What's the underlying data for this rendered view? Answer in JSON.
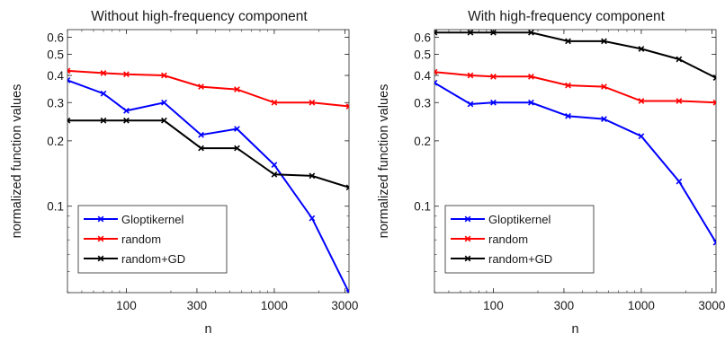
{
  "chart_data": [
    {
      "type": "line",
      "title": "Without high-frequency component",
      "xlabel": "n",
      "ylabel": "normalized function values",
      "xscale": "log",
      "yscale": "log",
      "xlim": [
        40,
        3200
      ],
      "ylim": [
        0.04,
        0.65
      ],
      "xticks": [
        100,
        300,
        1000,
        3000
      ],
      "xticklabels": [
        "100",
        "300",
        "1000",
        "3000"
      ],
      "yticks": [
        0.1,
        0.2,
        0.3,
        0.4,
        0.5,
        0.6
      ],
      "yticklabels": [
        "0.1",
        "0.2",
        "0.3",
        "0.4",
        "0.5",
        "0.6"
      ],
      "grid": false,
      "legend_position": "bottom-left",
      "x": [
        40,
        70,
        100,
        180,
        320,
        560,
        1000,
        1800,
        3200
      ],
      "series": [
        {
          "name": "Gloptikernel",
          "color": "#0000ff",
          "values": [
            0.38,
            0.33,
            0.275,
            0.3,
            0.213,
            0.227,
            0.155,
            0.088,
            0.04
          ]
        },
        {
          "name": "random",
          "color": "#ff0000",
          "values": [
            0.42,
            0.41,
            0.405,
            0.4,
            0.355,
            0.345,
            0.3,
            0.3,
            0.288
          ]
        },
        {
          "name": "random+GD",
          "color": "#000000",
          "values": [
            0.248,
            0.248,
            0.248,
            0.248,
            0.185,
            0.185,
            0.14,
            0.138,
            0.122
          ]
        }
      ]
    },
    {
      "type": "line",
      "title": "With high-frequency component",
      "xlabel": "n",
      "ylabel": "normalized function values",
      "xscale": "log",
      "yscale": "log",
      "xlim": [
        40,
        3200
      ],
      "ylim": [
        0.04,
        0.65
      ],
      "xticks": [
        100,
        300,
        1000,
        3000
      ],
      "xticklabels": [
        "100",
        "300",
        "1000",
        "3000"
      ],
      "yticks": [
        0.1,
        0.2,
        0.3,
        0.4,
        0.5,
        0.6
      ],
      "yticklabels": [
        "0.1",
        "0.2",
        "0.3",
        "0.4",
        "0.5",
        "0.6"
      ],
      "grid": false,
      "legend_position": "bottom-left",
      "x": [
        40,
        70,
        100,
        180,
        320,
        560,
        1000,
        1800,
        3200
      ],
      "series": [
        {
          "name": "Gloptikernel",
          "color": "#0000ff",
          "values": [
            0.37,
            0.295,
            0.3,
            0.3,
            0.26,
            0.252,
            0.21,
            0.13,
            0.068
          ]
        },
        {
          "name": "random",
          "color": "#ff0000",
          "values": [
            0.415,
            0.4,
            0.395,
            0.395,
            0.36,
            0.355,
            0.305,
            0.305,
            0.3
          ]
        },
        {
          "name": "random+GD",
          "color": "#000000",
          "values": [
            0.63,
            0.63,
            0.63,
            0.63,
            0.575,
            0.575,
            0.53,
            0.475,
            0.39
          ]
        }
      ]
    }
  ]
}
